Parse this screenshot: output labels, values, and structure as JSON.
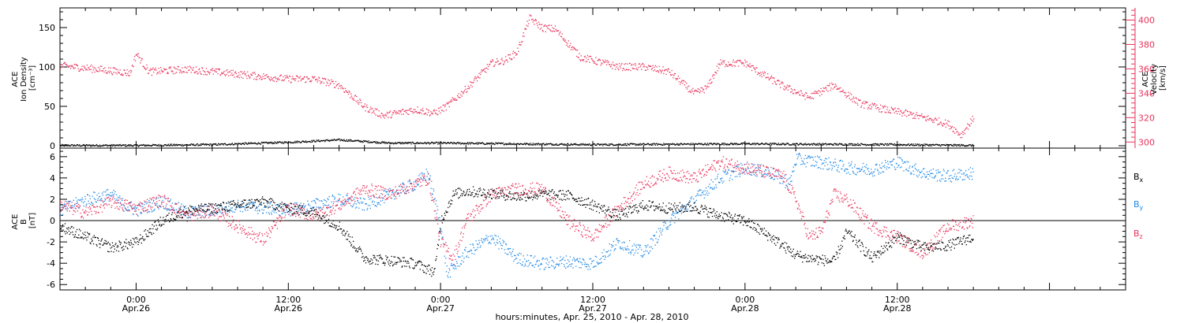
{
  "chart_data": [
    {
      "type": "scatter",
      "panel": "top",
      "ylabel_lines": [
        "ACE",
        "Ion Density",
        "[cm⁻³]"
      ],
      "ylabel_right_lines": [
        "ACE",
        "Velocity",
        "[km/s]"
      ],
      "ylim": [
        -3,
        175
      ],
      "yticks": [
        0,
        50,
        100,
        150
      ],
      "ylim_right": [
        295,
        410
      ],
      "yticks_right": [
        300,
        320,
        340,
        360,
        380,
        400
      ],
      "colors": {
        "density": "#000000",
        "velocity": "#e8325a"
      },
      "series": [
        {
          "key": "density",
          "axis": "left",
          "x": [
            -6,
            0,
            6,
            12,
            16,
            20,
            24,
            36,
            48,
            60,
            66
          ],
          "y": [
            1,
            1,
            2,
            5,
            8,
            4,
            4,
            2,
            3,
            2,
            1
          ]
        },
        {
          "key": "velocity",
          "axis": "right",
          "x": [
            -6,
            -3,
            -0.5,
            0,
            0.5,
            1,
            4,
            8,
            12,
            14,
            16,
            18,
            19.5,
            22,
            23.5,
            24.5,
            26,
            28,
            29,
            30,
            31,
            32,
            33,
            35,
            38,
            40,
            42,
            43,
            44,
            45,
            46,
            48,
            49,
            51,
            53,
            55,
            57,
            59,
            61,
            63,
            64,
            65,
            66
          ],
          "y": [
            363,
            360,
            357,
            373,
            365,
            358,
            360,
            356,
            352,
            352,
            347,
            329,
            322,
            327,
            324,
            330,
            344,
            365,
            367,
            374,
            402,
            394,
            393,
            370,
            362,
            362,
            358,
            349,
            340,
            345,
            365,
            365,
            358,
            346,
            337,
            347,
            332,
            327,
            323,
            318,
            315,
            306,
            320
          ]
        }
      ]
    },
    {
      "type": "scatter",
      "panel": "bottom",
      "ylabel_lines": [
        "ACE",
        "B",
        "[nT]"
      ],
      "ylim": [
        -6.5,
        6.8
      ],
      "yticks": [
        -6,
        -4,
        -2,
        0,
        2,
        4,
        6
      ],
      "colors": {
        "Bx": "#000000",
        "By": "#1e88e5",
        "Bz": "#e8325a"
      },
      "series": [
        {
          "key": "Bx",
          "legend": "Bx",
          "x": [
            -6,
            -4,
            -2,
            0,
            2,
            4,
            6,
            8,
            10,
            12,
            14,
            16,
            18,
            20,
            22,
            23.5,
            24,
            25,
            26,
            28,
            30,
            32,
            34,
            36,
            38,
            40,
            42,
            44,
            46,
            48,
            50,
            52,
            53,
            55,
            56,
            58,
            60,
            62,
            64,
            66
          ],
          "y": [
            -0.5,
            -1.5,
            -2.5,
            -2,
            0,
            1,
            1.2,
            1.5,
            1.8,
            1.2,
            0.8,
            -0.5,
            -3.5,
            -3.7,
            -4,
            -4.8,
            0,
            2.5,
            2.8,
            2.6,
            2.3,
            2.5,
            2.4,
            1.5,
            0.5,
            1.5,
            1.2,
            1.3,
            0.5,
            0,
            -1.5,
            -3.2,
            -3.5,
            -3.8,
            -1,
            -3.5,
            -1.5,
            -2.5,
            -2.3,
            -1.5
          ]
        },
        {
          "key": "By",
          "legend": "By",
          "x": [
            -6,
            -4,
            -2,
            -1,
            0,
            2,
            4,
            6,
            8,
            10,
            12,
            14,
            16,
            18,
            20,
            22,
            23,
            24,
            24.5,
            26,
            28,
            30,
            32,
            34,
            36,
            38,
            40,
            42,
            44,
            46,
            48,
            50,
            51.5,
            52,
            54,
            56,
            58,
            60,
            62,
            64,
            66
          ],
          "y": [
            1,
            2,
            2.5,
            1.5,
            1,
            1.8,
            0.8,
            1,
            1.5,
            1.2,
            1,
            1.5,
            2,
            1.5,
            2.5,
            3.5,
            4.5,
            -0.5,
            -5,
            -3,
            -1.5,
            -3.5,
            -4,
            -3.8,
            -4,
            -2,
            -3,
            0,
            2,
            4,
            5,
            4.5,
            3.5,
            5.8,
            5.5,
            5,
            4.8,
            5.5,
            4.5,
            4.2,
            4.5
          ]
        },
        {
          "key": "Bz",
          "legend": "Bz",
          "x": [
            -6,
            -4,
            -2,
            0,
            2,
            4,
            6,
            8,
            10,
            12,
            14,
            16,
            18,
            20,
            22,
            23,
            24,
            25,
            26,
            28,
            30,
            32,
            34,
            36,
            38,
            40,
            42,
            44,
            46,
            48,
            50,
            51,
            52,
            53,
            54,
            55,
            56,
            58,
            60,
            62,
            64,
            66
          ],
          "y": [
            1.5,
            0.8,
            1.8,
            1.2,
            2,
            0.5,
            1,
            -0.5,
            -1.8,
            1.2,
            0.5,
            1.5,
            3,
            2.5,
            3.5,
            4,
            -2,
            -3.5,
            0,
            2.5,
            3,
            3,
            0,
            -1.5,
            1.2,
            3.5,
            4.5,
            4,
            5.5,
            5,
            4.5,
            4.2,
            2,
            -1.5,
            -1,
            2.5,
            2,
            -0.5,
            -1.5,
            -3,
            -0.5,
            0
          ]
        }
      ]
    }
  ],
  "legend": {
    "bx": {
      "base": "B",
      "sub": "x"
    },
    "by": {
      "base": "B",
      "sub": "y"
    },
    "bz": {
      "base": "B",
      "sub": "z"
    }
  },
  "x_axis": {
    "xlim": [
      -6,
      78
    ],
    "ticks": [
      {
        "x": 0,
        "time": "0:00",
        "date": "Apr.26"
      },
      {
        "x": 12,
        "time": "12:00",
        "date": "Apr.26"
      },
      {
        "x": 24,
        "time": "0:00",
        "date": "Apr.27"
      },
      {
        "x": 36,
        "time": "12:00",
        "date": "Apr.27"
      },
      {
        "x": 48,
        "time": "0:00",
        "date": "Apr.28"
      },
      {
        "x": 60,
        "time": "12:00",
        "date": "Apr.28"
      }
    ],
    "xlabel": "hours:minutes, Apr. 25, 2010 - Apr. 28, 2010"
  }
}
